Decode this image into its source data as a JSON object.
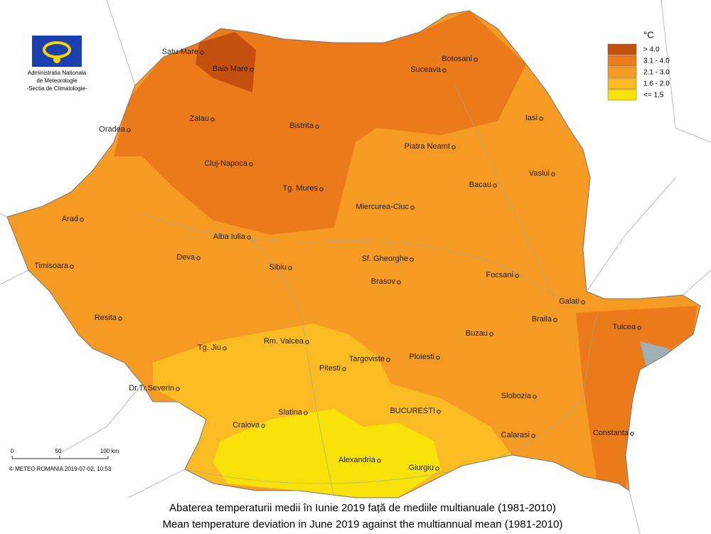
{
  "logo": {
    "lines": [
      "Administratia Nationala",
      "de Meteorologie",
      "-Sectia de Climatologie-"
    ]
  },
  "legend": {
    "title": "°C",
    "items": [
      {
        "label": "> 4.0",
        "color": "#c4500f"
      },
      {
        "label": "3.1 - 4.0",
        "color": "#ea7a1a"
      },
      {
        "label": "2.1 - 3.0",
        "color": "#f59a23"
      },
      {
        "label": "1.6 - 2.0",
        "color": "#fbbb22"
      },
      {
        "label": "<= 1.5",
        "color": "#f9e10a"
      }
    ]
  },
  "cities": [
    "Satu-Mare",
    "Baia Mare",
    "Zalau",
    "Oradea",
    "Bistrita",
    "Cluj-Napoca",
    "Tg. Mures",
    "Arad",
    "Alba Iulia",
    "Deva",
    "Timisoara",
    "Sibiu",
    "Resita",
    "Tg. Jiu",
    "Rm. Valcea",
    "Pitesti",
    "Dr.Tr.Severin",
    "Craiova",
    "Slatina",
    "Alexandria",
    "Giurgiu",
    "Botosani",
    "Suceava",
    "Iasi",
    "Piatra Neamt",
    "Vaslui",
    "Bacau",
    "Miercurea-Ciuc",
    "Sf. Gheorghe",
    "Brasov",
    "Focsani",
    "Galati",
    "Braila",
    "Tulcea",
    "Buzau",
    "Targoviste",
    "Ploiesti",
    "Slobozia",
    "BUCURESTI",
    "Calarasi",
    "Constanta"
  ],
  "scale_bar": {
    "ticks": [
      "0",
      "50",
      "100 km"
    ]
  },
  "credit": "© METEO ROMANIA 2019-07-02, 10:53",
  "caption": [
    "Abaterea temperaturii medii în  Iunie 2019  față de mediile multianuale (1981-2010)",
    "Mean temperature deviation in  June 2019  against the multiannual mean (1981-2010)"
  ]
}
